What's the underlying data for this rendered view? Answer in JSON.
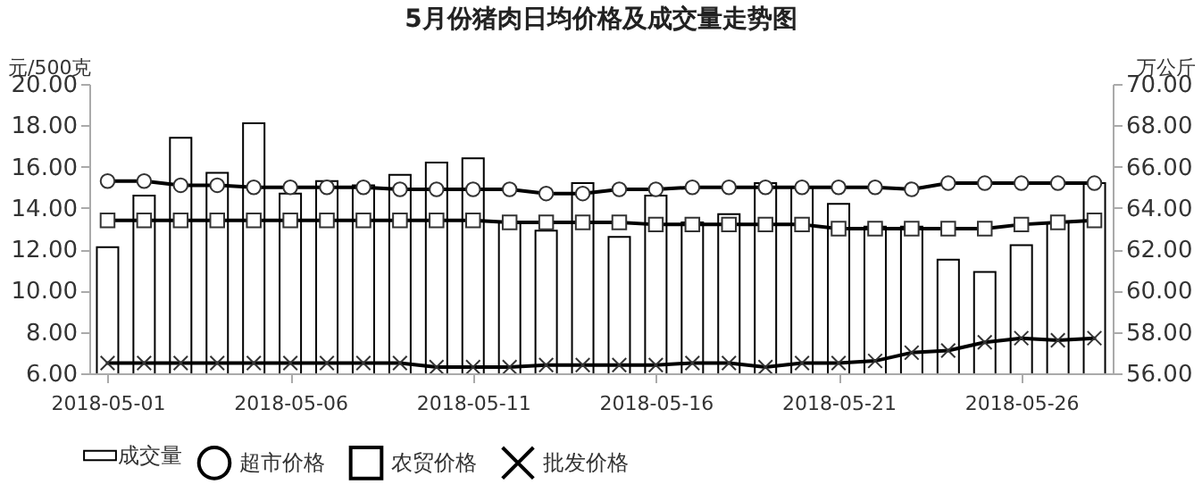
{
  "chart_data": {
    "type": "bar",
    "title": "5月份猪肉日均价格及成交量走势图",
    "ylabel": "元/500克",
    "y2label": "万公斤",
    "x": [
      "2018-05-01",
      "2018-05-02",
      "2018-05-03",
      "2018-05-04",
      "2018-05-05",
      "2018-05-06",
      "2018-05-07",
      "2018-05-08",
      "2018-05-09",
      "2018-05-10",
      "2018-05-11",
      "2018-05-12",
      "2018-05-13",
      "2018-05-14",
      "2018-05-15",
      "2018-05-16",
      "2018-05-17",
      "2018-05-18",
      "2018-05-19",
      "2018-05-20",
      "2018-05-21",
      "2018-05-22",
      "2018-05-23",
      "2018-05-24",
      "2018-05-25",
      "2018-05-26",
      "2018-05-27",
      "2018-05-28"
    ],
    "xlim": [
      "2018-04-30T12:00",
      "2018-05-28T12:00"
    ],
    "xticks": [
      "2018-05-01",
      "2018-05-06",
      "2018-05-11",
      "2018-05-16",
      "2018-05-21",
      "2018-05-26"
    ],
    "ylim": [
      6,
      20
    ],
    "yticks": [
      {
        "value": 6,
        "label": "6.00"
      },
      {
        "value": 8,
        "label": "8.00"
      },
      {
        "value": 10,
        "label": "10.00"
      },
      {
        "value": 12,
        "label": "12.00"
      },
      {
        "value": 14,
        "label": "14.00"
      },
      {
        "value": 16,
        "label": "16.00"
      },
      {
        "value": 18,
        "label": "18.00"
      },
      {
        "value": 20,
        "label": "20.00"
      }
    ],
    "y2lim": [
      56,
      70
    ],
    "y2ticks": [
      {
        "value": 56,
        "label": "56.00"
      },
      {
        "value": 58,
        "label": "58.00"
      },
      {
        "value": 60,
        "label": "60.00"
      },
      {
        "value": 62,
        "label": "62.00"
      },
      {
        "value": 64,
        "label": "64.00"
      },
      {
        "value": 66,
        "label": "66.00"
      },
      {
        "value": 68,
        "label": "68.00"
      },
      {
        "value": 70,
        "label": "70.00"
      }
    ],
    "series": [
      {
        "name": "成交量",
        "axis": "y2",
        "color": "#ffffff",
        "values": [
          62.1,
          64.6,
          67.4,
          65.7,
          68.1,
          64.7,
          65.3,
          65.1,
          65.6,
          66.2,
          66.4,
          63.3,
          62.9,
          65.2,
          62.6,
          64.6,
          63.3,
          63.7,
          65.2,
          65.0,
          64.2,
          63.1,
          63.1,
          61.5,
          60.9,
          62.2,
          63.3,
          65.2
        ]
      },
      {
        "name": "超市价格",
        "type": "line",
        "marker": "circle",
        "color": "#000000",
        "values": [
          15.3,
          15.3,
          15.1,
          15.1,
          15.0,
          15.0,
          15.0,
          15.0,
          14.9,
          14.9,
          14.9,
          14.9,
          14.7,
          14.7,
          14.9,
          14.9,
          15.0,
          15.0,
          15.0,
          15.0,
          15.0,
          15.0,
          14.9,
          15.2,
          15.2,
          15.2,
          15.2,
          15.2
        ]
      },
      {
        "name": "农贸价格",
        "type": "line",
        "marker": "square",
        "color": "#000000",
        "values": [
          13.4,
          13.4,
          13.4,
          13.4,
          13.4,
          13.4,
          13.4,
          13.4,
          13.4,
          13.4,
          13.4,
          13.3,
          13.3,
          13.3,
          13.3,
          13.2,
          13.2,
          13.2,
          13.2,
          13.2,
          13.0,
          13.0,
          13.0,
          13.0,
          13.0,
          13.2,
          13.3,
          13.4
        ]
      },
      {
        "name": "批发价格",
        "type": "line",
        "marker": "cross",
        "color": "#000000",
        "values": [
          6.5,
          6.5,
          6.5,
          6.5,
          6.5,
          6.5,
          6.5,
          6.5,
          6.5,
          6.3,
          6.3,
          6.3,
          6.4,
          6.4,
          6.4,
          6.4,
          6.5,
          6.5,
          6.3,
          6.5,
          6.5,
          6.6,
          7.0,
          7.1,
          7.5,
          7.7,
          7.6,
          7.7
        ]
      }
    ],
    "legend": "bottom"
  }
}
